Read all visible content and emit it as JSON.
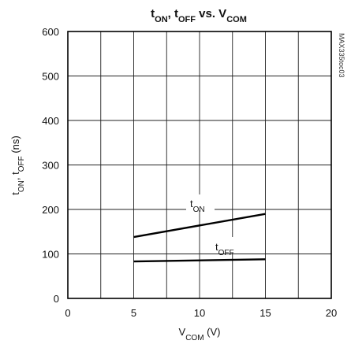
{
  "chart_data": {
    "type": "line",
    "title_parts": [
      "t",
      "ON",
      ", t",
      "OFF",
      " vs. V",
      "COM"
    ],
    "xlabel_parts": [
      "V",
      "COM",
      " (V)"
    ],
    "ylabel_parts": [
      "t",
      "ON",
      ", t",
      "OFF",
      " (ns)"
    ],
    "xlim": [
      0,
      20
    ],
    "ylim": [
      0,
      600
    ],
    "x_ticks": [
      0,
      5,
      10,
      15,
      20
    ],
    "y_ticks": [
      0,
      100,
      200,
      300,
      400,
      500,
      600
    ],
    "x_grid": [
      0,
      2.5,
      5,
      7.5,
      10,
      12.5,
      15,
      17.5,
      20
    ],
    "y_grid": [
      0,
      100,
      200,
      300,
      400,
      500,
      600
    ],
    "grid": true,
    "series": [
      {
        "name_parts": [
          "t",
          "ON"
        ],
        "x": [
          5,
          15
        ],
        "y": [
          138,
          190
        ]
      },
      {
        "name_parts": [
          "t",
          "OFF"
        ],
        "x": [
          5,
          15
        ],
        "y": [
          83,
          88
        ]
      }
    ],
    "side_code": "MAX335toc03"
  }
}
